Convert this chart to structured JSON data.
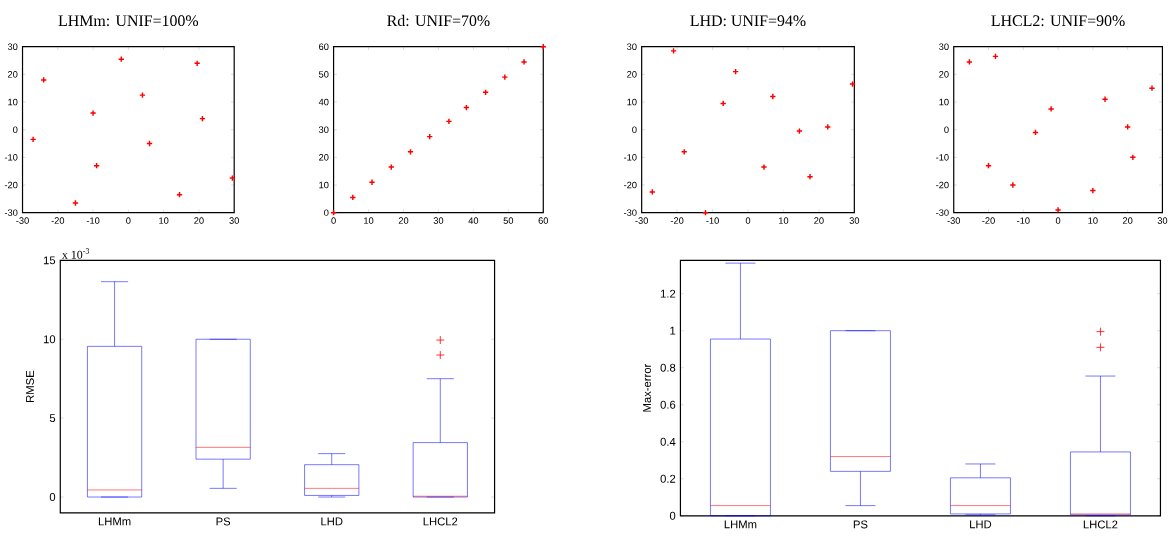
{
  "chart_data": [
    {
      "type": "scatter",
      "title": "LHMm: UNIF=100%",
      "marker": "cross",
      "xlim": [
        -30,
        30
      ],
      "ylim": [
        -30,
        30
      ],
      "xticks": [
        -30,
        -20,
        -10,
        0,
        10,
        20,
        30
      ],
      "yticks": [
        -30,
        -20,
        -10,
        0,
        10,
        20,
        30
      ],
      "series": [
        {
          "color": "#ff0000",
          "x": [
            -27,
            -24,
            -15,
            -10,
            -9,
            -2,
            4,
            6,
            14.5,
            19.5,
            21,
            29.5
          ],
          "values": [
            -3.5,
            18,
            -26.5,
            6,
            -13,
            25.5,
            12.5,
            -5,
            -23.5,
            24,
            4,
            -17.5
          ]
        }
      ]
    },
    {
      "type": "scatter",
      "title": "Rd: UNIF=70%",
      "marker": "cross",
      "xlim": [
        0,
        60
      ],
      "ylim": [
        0,
        60
      ],
      "xticks": [
        0,
        10,
        20,
        30,
        40,
        50,
        60
      ],
      "yticks": [
        0,
        10,
        20,
        30,
        40,
        50,
        60
      ],
      "series": [
        {
          "color": "#ff0000",
          "x": [
            0,
            5.5,
            11,
            16.5,
            22,
            27.5,
            33,
            38,
            43.5,
            49,
            54.5,
            60
          ],
          "values": [
            0,
            5.5,
            11,
            16.5,
            22,
            27.5,
            33,
            38,
            43.5,
            49,
            54.5,
            60
          ]
        }
      ]
    },
    {
      "type": "scatter",
      "title": "LHD: UNIF=94%",
      "marker": "cross",
      "xlim": [
        -30,
        30
      ],
      "ylim": [
        -30,
        30
      ],
      "xticks": [
        -30,
        -20,
        -10,
        0,
        10,
        20,
        30
      ],
      "yticks": [
        -30,
        -20,
        -10,
        0,
        10,
        20,
        30
      ],
      "series": [
        {
          "color": "#ff0000",
          "x": [
            -27,
            -21,
            -18,
            -12,
            -7,
            -3.5,
            4.5,
            7,
            14.5,
            17.5,
            22.5,
            29.5
          ],
          "values": [
            -22.5,
            28.5,
            -8,
            -30,
            9.5,
            21,
            -13.5,
            12,
            -0.5,
            -17,
            1,
            16.5
          ]
        }
      ]
    },
    {
      "type": "scatter",
      "title": "LHCL2:        UNIF=90%",
      "marker": "cross",
      "xlim": [
        -30,
        30
      ],
      "ylim": [
        -30,
        30
      ],
      "xticks": [
        -30,
        -20,
        -10,
        0,
        10,
        20,
        30
      ],
      "yticks": [
        -30,
        -20,
        -10,
        0,
        10,
        20,
        30
      ],
      "series": [
        {
          "color": "#ff0000",
          "x": [
            -25.5,
            -20,
            -18,
            -13,
            -6.5,
            -2,
            0,
            10,
            13.5,
            20,
            21.5,
            27
          ],
          "values": [
            24.5,
            -13,
            26.5,
            -20,
            -1,
            7.5,
            -29,
            -22,
            11,
            1,
            -10,
            15
          ]
        }
      ]
    },
    {
      "type": "box",
      "ylabel": "RMSE",
      "annotations": [
        "x 10$^{-3}$"
      ],
      "categories": [
        "LHMm",
        "PS",
        "LHD",
        "LHCL2"
      ],
      "ylim": [
        -1,
        15
      ],
      "yticks": [
        0,
        5,
        10,
        15
      ],
      "series": [
        {
          "color": "#0000ff",
          "boxes": [
            {
              "low": 0,
              "q1": 0,
              "median": 0.45,
              "q3": 9.55,
              "high": 13.65
            },
            {
              "low": 0.55,
              "q1": 2.4,
              "median": 3.15,
              "q3": 10,
              "high": 10
            },
            {
              "low": 0,
              "q1": 0.1,
              "median": 0.55,
              "q3": 2.05,
              "high": 2.75
            },
            {
              "low": 0,
              "q1": 0,
              "median": 0.05,
              "q3": 3.45,
              "high": 7.5,
              "outliers": [
                9,
                9.95
              ]
            }
          ]
        }
      ]
    },
    {
      "type": "box",
      "ylabel": "Max-error",
      "categories": [
        "LHMm",
        "PS",
        "LHD",
        "LHCL2"
      ],
      "ylim": [
        0,
        1.38
      ],
      "yticks": [
        0,
        0.2,
        0.4,
        0.6,
        0.8,
        1,
        1.2
      ],
      "series": [
        {
          "color": "#0000ff",
          "boxes": [
            {
              "low": 0,
              "q1": 0,
              "median": 0.055,
              "q3": 0.955,
              "high": 1.365
            },
            {
              "low": 0.055,
              "q1": 0.24,
              "median": 0.32,
              "q3": 1,
              "high": 1
            },
            {
              "low": 0.005,
              "q1": 0.01,
              "median": 0.055,
              "q3": 0.205,
              "high": 0.28
            },
            {
              "low": 0,
              "q1": 0.005,
              "median": 0.01,
              "q3": 0.345,
              "high": 0.755,
              "outliers": [
                0.91,
                0.995
              ]
            }
          ]
        }
      ]
    }
  ]
}
